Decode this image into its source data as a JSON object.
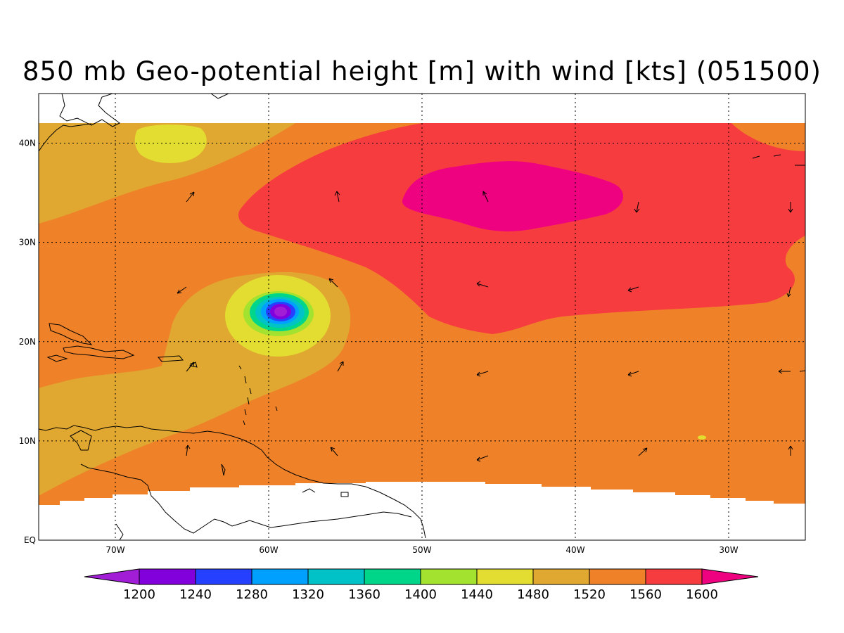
{
  "title": "850 mb Geo-potential height [m] with wind [kts] (051500)",
  "map": {
    "lat_range": [
      0,
      45
    ],
    "lon_range": [
      -75,
      -25
    ],
    "lat_ticks": [
      {
        "value": 40,
        "label": "40N"
      },
      {
        "value": 30,
        "label": "30N"
      },
      {
        "value": 20,
        "label": "20N"
      },
      {
        "value": 10,
        "label": "10N"
      },
      {
        "value": 0,
        "label": "EQ"
      }
    ],
    "lon_ticks": [
      {
        "value": -70,
        "label": "70W"
      },
      {
        "value": -60,
        "label": "60W"
      },
      {
        "value": -50,
        "label": "50W"
      },
      {
        "value": -40,
        "label": "40W"
      },
      {
        "value": -30,
        "label": "30W"
      }
    ],
    "grid": true,
    "colors": {
      "background_1520": "#e0a830",
      "band_1560": "#ef8229",
      "band_1600": "#f73c40",
      "band_high": "#ee0280",
      "band_1480": "#e3dc31",
      "band_1440": "#a3e32f",
      "band_1400": "#00d68a",
      "band_1360": "#00c2c7",
      "band_1320": "#00a0ff",
      "band_1280": "#2640ff",
      "band_1240": "#8200dc",
      "band_low": "#a21ed6",
      "coastline": "#000000"
    }
  },
  "colorbar": {
    "labels": [
      "1200",
      "1240",
      "1280",
      "1320",
      "1360",
      "1400",
      "1440",
      "1480",
      "1520",
      "1560",
      "1600"
    ],
    "colors": [
      "#a21ed6",
      "#8200dc",
      "#2640ff",
      "#00a0ff",
      "#00c2c7",
      "#00d68a",
      "#a3e32f",
      "#e3dc31",
      "#e0a830",
      "#ef8229",
      "#f73c40",
      "#ee0280"
    ]
  }
}
